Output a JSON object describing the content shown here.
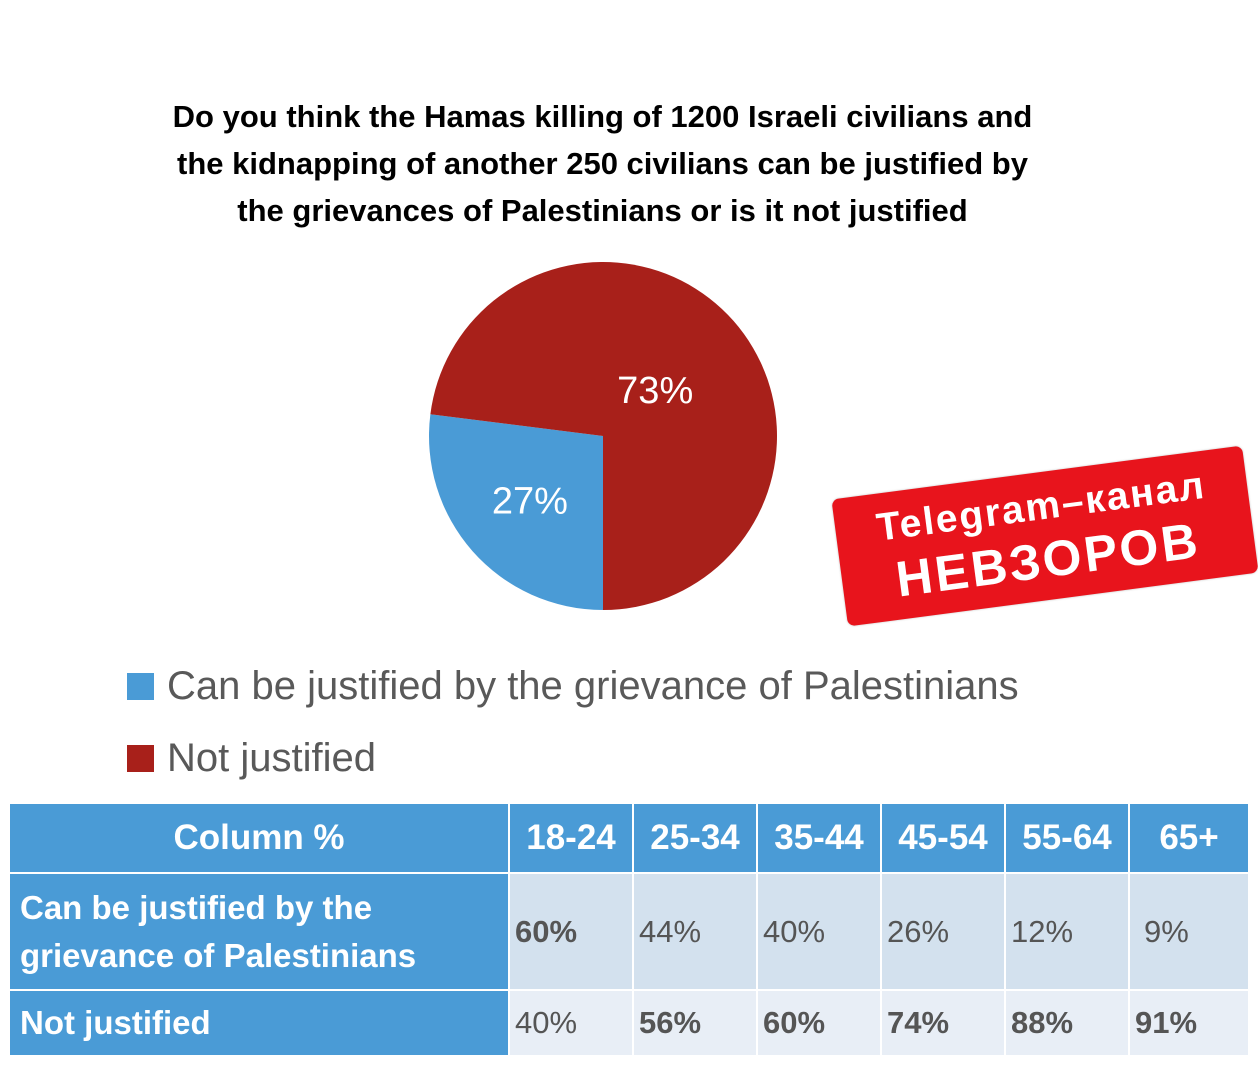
{
  "chart_data": {
    "type": "pie",
    "title": "Do you think the Hamas killing of 1200 Israeli civilians and the kidnapping of another 250 civilians can be justified by the grievances of Palestinians or is it not justified",
    "title_lines": [
      "Do you think the Hamas killing of 1200 Israeli civilians and",
      "the kidnapping of another 250 civilians can be justified by",
      "the grievances of Palestinians or is it not justified"
    ],
    "slices": [
      {
        "label": "Can be justified by the grievance of Palestinians",
        "value": 27,
        "display": "27%",
        "color": "#4a9bd6"
      },
      {
        "label": "Not justified",
        "value": 73,
        "display": "73%",
        "color": "#a8201a"
      }
    ],
    "legend_position": "bottom"
  },
  "watermark": {
    "line1": "Telegram–канал",
    "line2": "НЕВЗОРОВ",
    "color": "#e8141c"
  },
  "table": {
    "corner": "Column %",
    "columns": [
      "18-24",
      "25-34",
      "35-44",
      "45-54",
      "55-64",
      "65+"
    ],
    "rows": [
      {
        "label": "Can be justified by the grievance of Palestinians",
        "label_lines": [
          "Can be justified by the",
          "grievance of Palestinians"
        ],
        "values": [
          "60%",
          "44%",
          "40%",
          "26%",
          "12%",
          "9%"
        ],
        "bold": [
          true,
          false,
          false,
          false,
          false,
          false
        ]
      },
      {
        "label": "Not justified",
        "label_lines": [
          "Not justified"
        ],
        "values": [
          "40%",
          "56%",
          "60%",
          "74%",
          "88%",
          "91%"
        ],
        "bold": [
          false,
          true,
          true,
          true,
          true,
          true
        ]
      }
    ],
    "header_color": "#4a9bd6"
  }
}
